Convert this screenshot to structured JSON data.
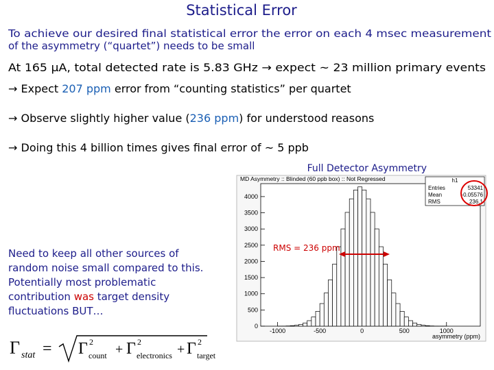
{
  "title": "Statistical Error",
  "intro": [
    "To achieve our desired final statistical error the error on each 4 msec measurement",
    "of the asymmetry (“quartet”) needs to be small"
  ],
  "bullets": [
    [
      "At 165 μA, total detected rate is 5.83 GHz  →  expect ~ 23 million primary events"
    ],
    [
      "→ Expect ",
      "207 ppm",
      " error from “counting statistics” per quartet"
    ],
    [
      "→  Observe slightly higher value (",
      "236 ppm",
      ") for understood reasons"
    ],
    [
      "→ Doing this 4 billion times gives final error of ~ 5 ppb"
    ]
  ],
  "note": [
    [
      "Need to keep all other sources of"
    ],
    [
      "random noise small compared to this."
    ],
    [
      "Potentially most problematic"
    ],
    [
      "contribution ",
      "was",
      " target density"
    ],
    [
      "fluctuations BUT…"
    ]
  ],
  "formula": {
    "lhs": "Γ",
    "lhs_sub": "stat",
    "eq": "=",
    "plus": "+",
    "terms": [
      {
        "sym": "Γ",
        "sup": "2",
        "sub": "count"
      },
      {
        "sym": "Γ",
        "sup": "2",
        "sub": "electronics"
      },
      {
        "sym": "Γ",
        "sup": "2",
        "sub": "target"
      }
    ]
  },
  "histogram": {
    "type": "histogram",
    "caption": "Full Detector Asymmetry",
    "title": "MD Asymmetry :: Blinded (60 ppb box) :: Not Regressed",
    "xlabel": "asymmetry (ppm)",
    "bins": [
      -1000,
      -950,
      -900,
      -850,
      -800,
      -750,
      -700,
      -650,
      -600,
      -550,
      -500,
      -450,
      -400,
      -350,
      -300,
      -250,
      -200,
      -150,
      -100,
      -50,
      0,
      50,
      100,
      150,
      200,
      250,
      300,
      350,
      400,
      450,
      500,
      550,
      600,
      650,
      700,
      750,
      800,
      850,
      900,
      950,
      1000
    ],
    "counts": [
      1,
      3,
      7,
      14,
      28,
      53,
      97,
      170,
      283,
      457,
      698,
      1023,
      1431,
      1917,
      2453,
      3003,
      3513,
      3931,
      4204,
      4300,
      4204,
      3931,
      3513,
      3003,
      2453,
      1917,
      1431,
      1023,
      698,
      457,
      283,
      170,
      97,
      53,
      28,
      14,
      7,
      3,
      1,
      1
    ],
    "color": "#000000",
    "xlim": [
      -1200,
      1400
    ],
    "ylim": [
      0,
      4400
    ],
    "xticks": [
      -1000,
      -500,
      0,
      500,
      1000
    ],
    "yticks": [
      0,
      500,
      1000,
      1500,
      2000,
      2500,
      3000,
      3500,
      4000
    ],
    "stats": {
      "name": "h1",
      "rows": [
        [
          "Entries",
          "53341"
        ],
        [
          "Mean",
          "-0.05576"
        ],
        [
          "RMS",
          "236.1"
        ]
      ]
    },
    "annotation": "RMS = 236 ppm"
  }
}
